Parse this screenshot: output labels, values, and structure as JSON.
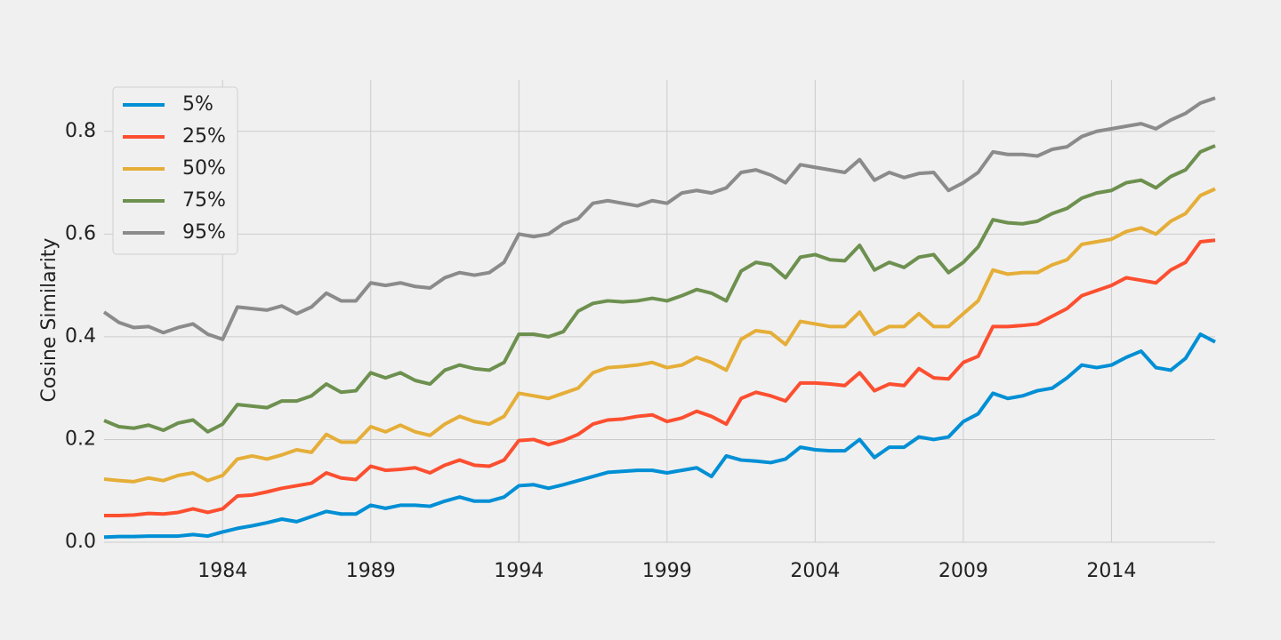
{
  "chart_data": {
    "type": "line",
    "ylabel": "Cosine Similarity",
    "xlim": [
      1980,
      2017.5
    ],
    "ylim": [
      0,
      0.9
    ],
    "xticks": [
      1984,
      1989,
      1994,
      1999,
      2004,
      2009,
      2014
    ],
    "yticks": [
      {
        "value": 0,
        "label": "0.0"
      },
      0.2,
      0.4,
      0.6,
      0.8
    ],
    "grid": true,
    "legend": "upper left",
    "x": [
      1980,
      1980.5,
      1981,
      1981.5,
      1982,
      1982.5,
      1983,
      1983.5,
      1984,
      1984.5,
      1985,
      1985.5,
      1986,
      1986.5,
      1987,
      1987.5,
      1988,
      1988.5,
      1989,
      1989.5,
      1990,
      1990.5,
      1991,
      1991.5,
      1992,
      1992.5,
      1993,
      1993.5,
      1994,
      1994.5,
      1995,
      1995.5,
      1996,
      1996.5,
      1997,
      1997.5,
      1998,
      1998.5,
      1999,
      1999.5,
      2000,
      2000.5,
      2001,
      2001.5,
      2002,
      2002.5,
      2003,
      2003.5,
      2004,
      2004.5,
      2005,
      2005.5,
      2006,
      2006.5,
      2007,
      2007.5,
      2008,
      2008.5,
      2009,
      2009.5,
      2010,
      2010.5,
      2011,
      2011.5,
      2012,
      2012.5,
      2013,
      2013.5,
      2014,
      2014.5,
      2015,
      2015.5,
      2016,
      2016.5,
      2017,
      2017.5
    ],
    "series": [
      {
        "name": "5%",
        "color": "#008fd5",
        "values": [
          0.01,
          0.011,
          0.011,
          0.012,
          0.012,
          0.012,
          0.015,
          0.012,
          0.02,
          0.027,
          0.032,
          0.038,
          0.045,
          0.04,
          0.05,
          0.06,
          0.055,
          0.055,
          0.072,
          0.066,
          0.072,
          0.072,
          0.07,
          0.08,
          0.088,
          0.08,
          0.08,
          0.088,
          0.11,
          0.112,
          0.105,
          0.112,
          0.12,
          0.128,
          0.136,
          0.138,
          0.14,
          0.14,
          0.135,
          0.14,
          0.145,
          0.128,
          0.168,
          0.16,
          0.158,
          0.155,
          0.162,
          0.185,
          0.18,
          0.178,
          0.178,
          0.2,
          0.165,
          0.185,
          0.185,
          0.205,
          0.2,
          0.205,
          0.235,
          0.25,
          0.29,
          0.28,
          0.285,
          0.295,
          0.3,
          0.32,
          0.345,
          0.34,
          0.345,
          0.36,
          0.372,
          0.34,
          0.335,
          0.358,
          0.405,
          0.39
        ]
      },
      {
        "name": "25%",
        "color": "#fc4f30",
        "values": [
          0.052,
          0.052,
          0.053,
          0.056,
          0.055,
          0.058,
          0.065,
          0.058,
          0.065,
          0.09,
          0.092,
          0.098,
          0.105,
          0.11,
          0.115,
          0.135,
          0.125,
          0.122,
          0.148,
          0.14,
          0.142,
          0.145,
          0.135,
          0.15,
          0.16,
          0.15,
          0.148,
          0.16,
          0.198,
          0.2,
          0.19,
          0.198,
          0.21,
          0.23,
          0.238,
          0.24,
          0.245,
          0.248,
          0.235,
          0.242,
          0.255,
          0.245,
          0.23,
          0.28,
          0.292,
          0.285,
          0.275,
          0.31,
          0.31,
          0.308,
          0.305,
          0.33,
          0.295,
          0.308,
          0.305,
          0.338,
          0.32,
          0.318,
          0.35,
          0.362,
          0.42,
          0.42,
          0.422,
          0.425,
          0.44,
          0.455,
          0.48,
          0.49,
          0.5,
          0.515,
          0.51,
          0.505,
          0.53,
          0.545,
          0.585,
          0.588
        ]
      },
      {
        "name": "50%",
        "color": "#e5ae38",
        "values": [
          0.123,
          0.12,
          0.118,
          0.125,
          0.12,
          0.13,
          0.135,
          0.12,
          0.13,
          0.162,
          0.168,
          0.162,
          0.17,
          0.18,
          0.175,
          0.21,
          0.195,
          0.195,
          0.225,
          0.215,
          0.228,
          0.215,
          0.208,
          0.23,
          0.245,
          0.235,
          0.23,
          0.245,
          0.29,
          0.285,
          0.28,
          0.29,
          0.3,
          0.33,
          0.34,
          0.342,
          0.345,
          0.35,
          0.34,
          0.345,
          0.36,
          0.35,
          0.335,
          0.395,
          0.412,
          0.408,
          0.385,
          0.43,
          0.425,
          0.42,
          0.42,
          0.448,
          0.405,
          0.42,
          0.42,
          0.445,
          0.42,
          0.42,
          0.445,
          0.47,
          0.53,
          0.522,
          0.525,
          0.525,
          0.54,
          0.55,
          0.58,
          0.585,
          0.59,
          0.605,
          0.612,
          0.6,
          0.625,
          0.64,
          0.675,
          0.688
        ]
      },
      {
        "name": "75%",
        "color": "#6d904f",
        "values": [
          0.237,
          0.225,
          0.222,
          0.228,
          0.218,
          0.232,
          0.238,
          0.215,
          0.23,
          0.268,
          0.265,
          0.262,
          0.275,
          0.275,
          0.285,
          0.308,
          0.292,
          0.295,
          0.33,
          0.32,
          0.33,
          0.315,
          0.308,
          0.335,
          0.345,
          0.338,
          0.335,
          0.35,
          0.405,
          0.405,
          0.4,
          0.41,
          0.45,
          0.465,
          0.47,
          0.468,
          0.47,
          0.475,
          0.47,
          0.48,
          0.492,
          0.485,
          0.47,
          0.528,
          0.545,
          0.54,
          0.515,
          0.555,
          0.56,
          0.55,
          0.548,
          0.578,
          0.53,
          0.545,
          0.535,
          0.555,
          0.56,
          0.525,
          0.545,
          0.575,
          0.628,
          0.622,
          0.62,
          0.625,
          0.64,
          0.65,
          0.67,
          0.68,
          0.685,
          0.7,
          0.705,
          0.69,
          0.712,
          0.725,
          0.76,
          0.772
        ]
      },
      {
        "name": "95%",
        "color": "#8b8b8b",
        "values": [
          0.448,
          0.428,
          0.418,
          0.42,
          0.408,
          0.418,
          0.425,
          0.405,
          0.395,
          0.458,
          0.455,
          0.452,
          0.46,
          0.445,
          0.458,
          0.485,
          0.47,
          0.47,
          0.505,
          0.5,
          0.505,
          0.498,
          0.495,
          0.515,
          0.525,
          0.52,
          0.525,
          0.545,
          0.6,
          0.595,
          0.6,
          0.62,
          0.63,
          0.66,
          0.665,
          0.66,
          0.655,
          0.665,
          0.66,
          0.68,
          0.685,
          0.68,
          0.69,
          0.72,
          0.725,
          0.715,
          0.7,
          0.735,
          0.73,
          0.725,
          0.72,
          0.745,
          0.705,
          0.72,
          0.71,
          0.718,
          0.72,
          0.685,
          0.7,
          0.72,
          0.76,
          0.755,
          0.755,
          0.752,
          0.765,
          0.77,
          0.79,
          0.8,
          0.805,
          0.81,
          0.815,
          0.805,
          0.822,
          0.835,
          0.855,
          0.865
        ]
      }
    ]
  }
}
